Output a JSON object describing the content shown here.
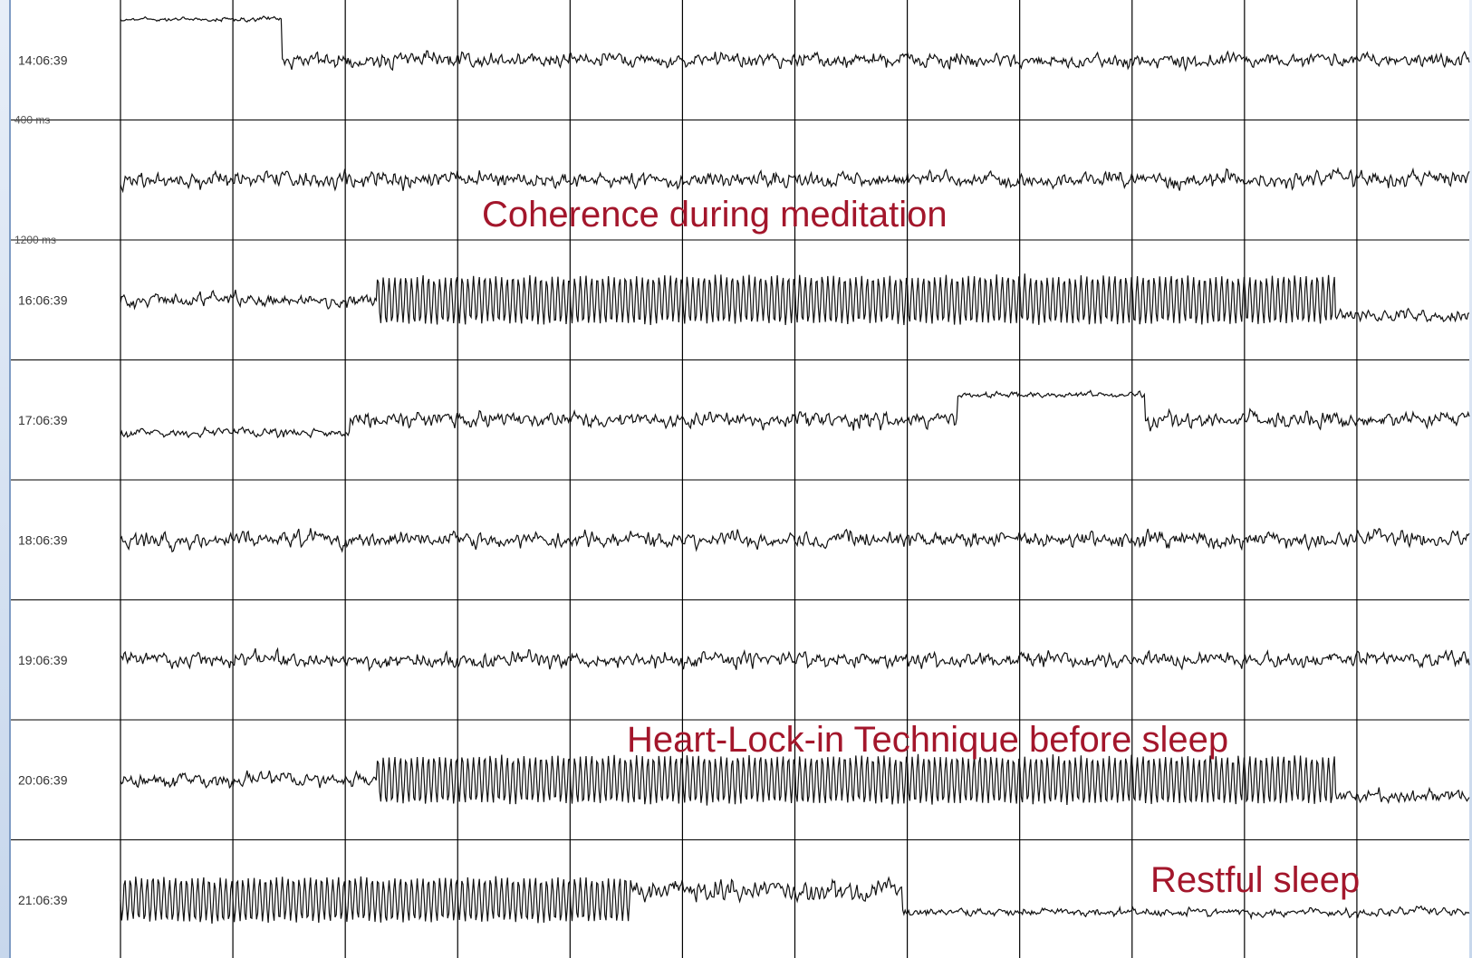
{
  "chart_data": {
    "type": "line",
    "title": "",
    "xlabel": "",
    "ylabel": "",
    "rows": [
      {
        "time": "14:06:39",
        "pattern": "mixed-drift"
      },
      {
        "time": "",
        "pattern": "irregular"
      },
      {
        "time": "16:06:39",
        "pattern": "coherent-oscillation"
      },
      {
        "time": "17:06:39",
        "pattern": "irregular-drift"
      },
      {
        "time": "18:06:39",
        "pattern": "irregular"
      },
      {
        "time": "19:06:39",
        "pattern": "irregular"
      },
      {
        "time": "20:06:39",
        "pattern": "coherent-oscillation"
      },
      {
        "time": "21:06:39",
        "pattern": "coherent-then-sleep"
      }
    ],
    "scale_labels": [
      "400 ms",
      "1200 ms"
    ],
    "annotations": [
      "Coherence during meditation",
      "Heart-Lock-in Technique before sleep",
      "Restful sleep"
    ],
    "vertical_divisions": 12,
    "grid": true
  },
  "colors": {
    "trace": "#111111",
    "grid": "#000000",
    "annotation": "#a3162b",
    "background": "#ffffff"
  }
}
